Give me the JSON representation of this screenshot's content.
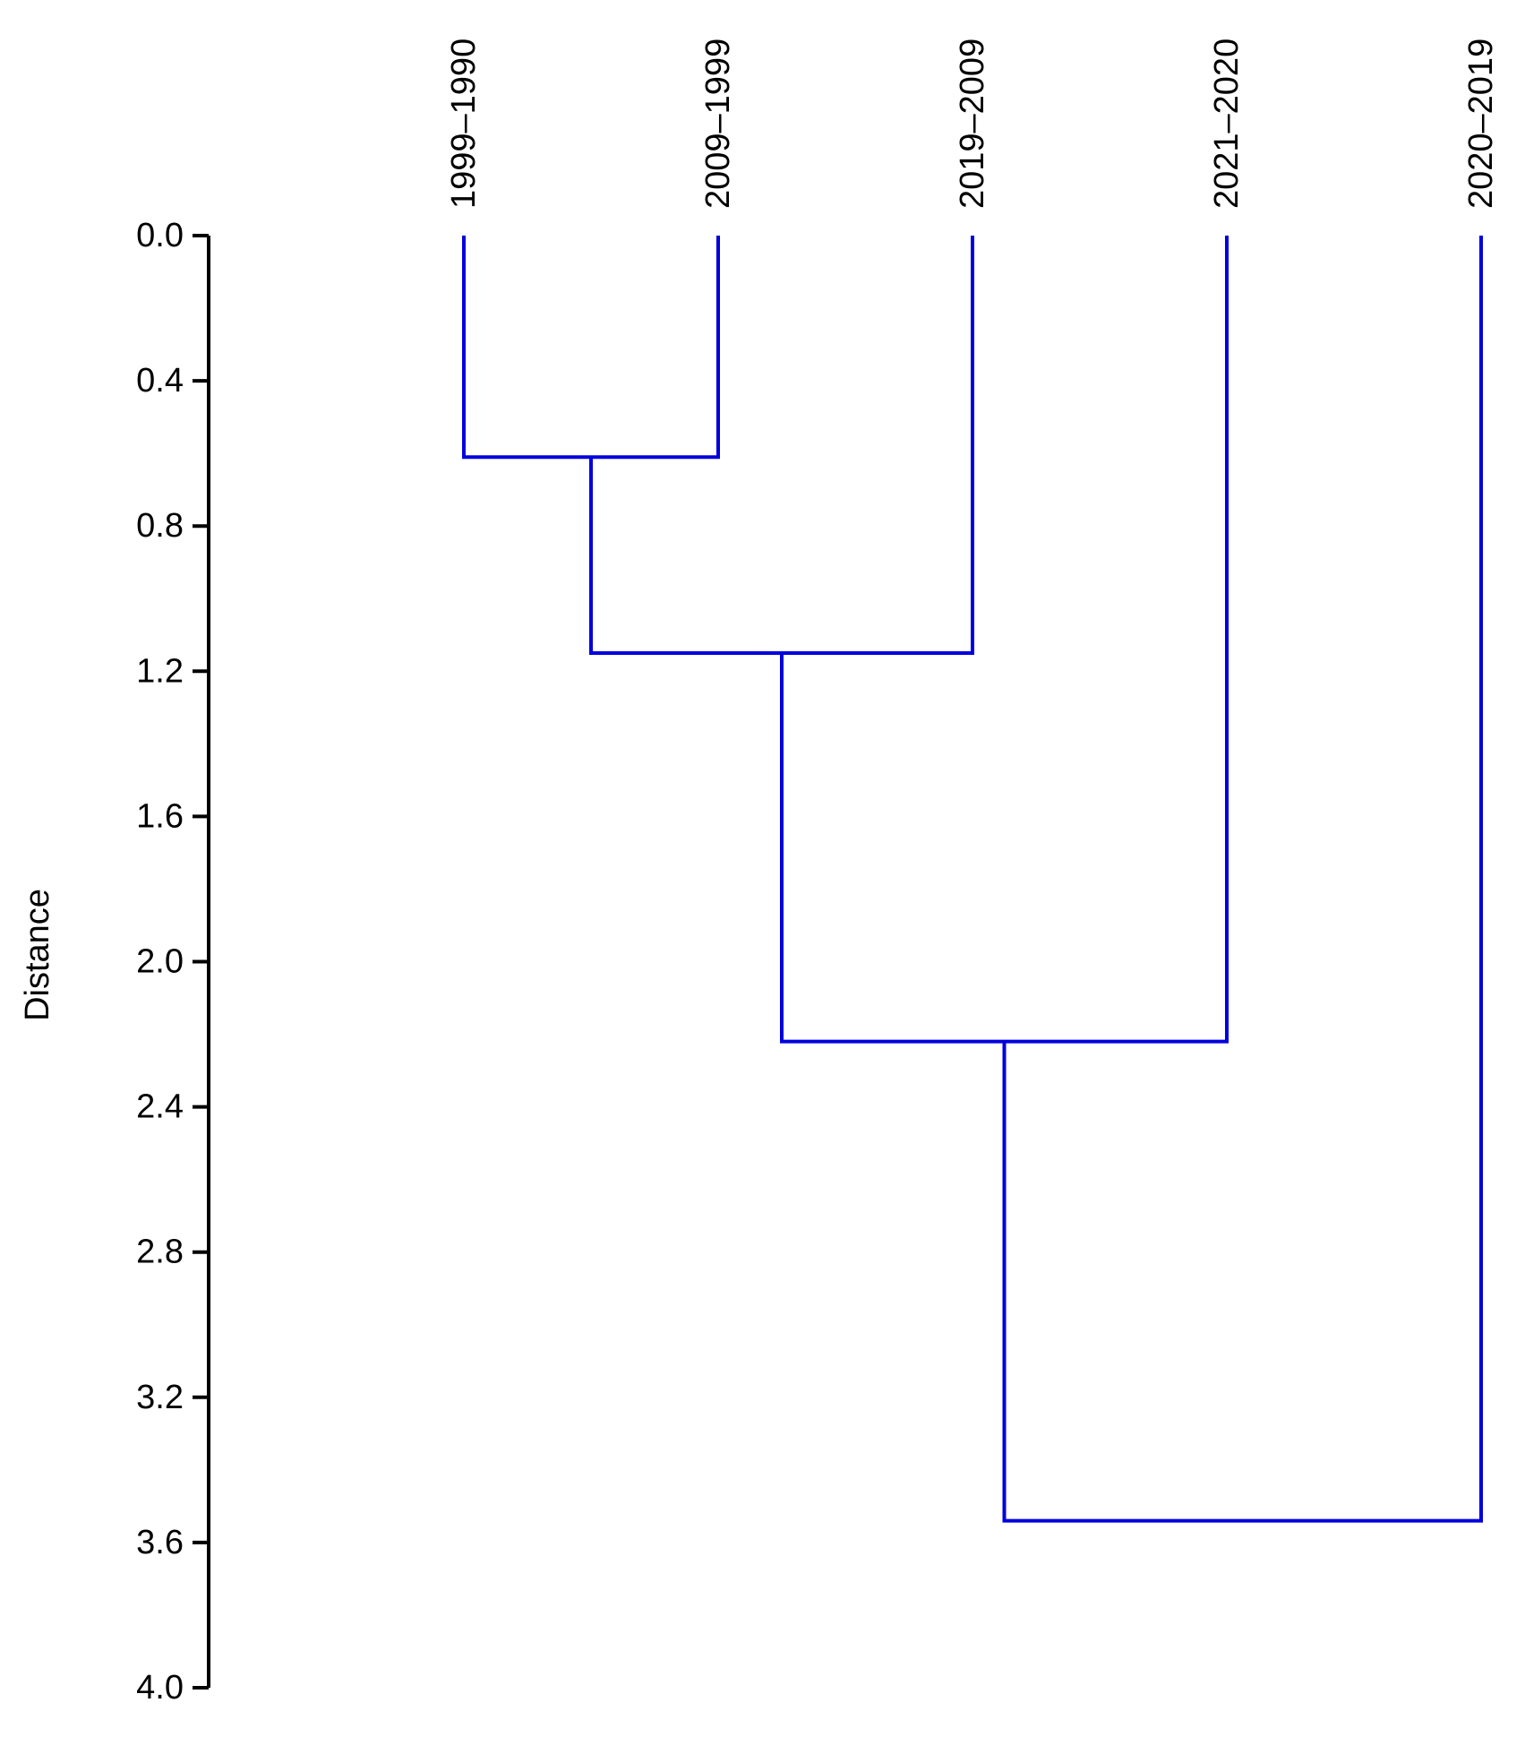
{
  "chart_data": {
    "type": "dendrogram",
    "orientation": "top-down",
    "ylabel": "Distance",
    "ylim": [
      0.0,
      4.0
    ],
    "yticks": [
      "0.0",
      "0.4",
      "0.8",
      "1.2",
      "1.6",
      "2.0",
      "2.4",
      "2.8",
      "3.2",
      "3.6",
      "4.0"
    ],
    "leaves": [
      "1999–1990",
      "2009–1999",
      "2019–2009",
      "2021–2020",
      "2020–2019"
    ],
    "merges": [
      {
        "left": "leaf:0",
        "right": "leaf:1",
        "height": 0.61
      },
      {
        "left": "node:0",
        "right": "leaf:2",
        "height": 1.15
      },
      {
        "left": "node:1",
        "right": "leaf:3",
        "height": 2.22
      },
      {
        "left": "node:2",
        "right": "leaf:4",
        "height": 3.54
      }
    ],
    "line_color": "#0000dd",
    "grid": false
  }
}
